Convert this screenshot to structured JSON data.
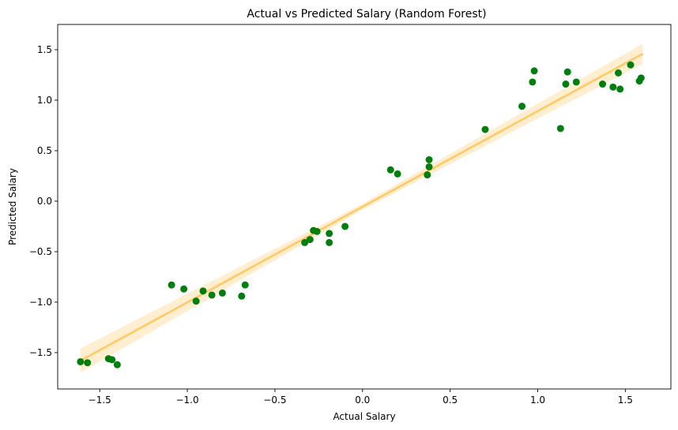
{
  "chart_data": {
    "type": "scatter",
    "title": "Actual vs Predicted Salary (Random Forest)",
    "xlabel": "Actual Salary",
    "ylabel": "Predicted Salary",
    "xlim": [
      -1.74,
      1.76
    ],
    "ylim": [
      -1.86,
      1.75
    ],
    "xticks": [
      -1.5,
      -1.0,
      -0.5,
      0.0,
      0.5,
      1.0,
      1.5
    ],
    "xtick_labels": [
      "−1.5",
      "−1.0",
      "−0.5",
      "0.0",
      "0.5",
      "1.0",
      "1.5"
    ],
    "yticks": [
      -1.5,
      -1.0,
      -0.5,
      0.0,
      0.5,
      1.0,
      1.5
    ],
    "yticks_labels": [
      "−1.5",
      "−1.0",
      "−0.5",
      "0.0",
      "0.5",
      "1.0",
      "1.5"
    ],
    "grid": false,
    "point_color": "#007f0e",
    "fit_line_color": "#ffc966",
    "fit_band_color": "#ffe0a8",
    "fit_line": {
      "x": [
        -1.61,
        1.6
      ],
      "y": [
        -1.58,
        1.46
      ]
    },
    "fit_band_halfwidth": [
      0.12,
      0.03,
      0.1
    ],
    "points": [
      {
        "x": -1.61,
        "y": -1.59
      },
      {
        "x": -1.57,
        "y": -1.6
      },
      {
        "x": -1.45,
        "y": -1.56
      },
      {
        "x": -1.43,
        "y": -1.57
      },
      {
        "x": -1.4,
        "y": -1.62
      },
      {
        "x": -1.09,
        "y": -0.83
      },
      {
        "x": -1.02,
        "y": -0.87
      },
      {
        "x": -0.95,
        "y": -0.99
      },
      {
        "x": -0.91,
        "y": -0.89
      },
      {
        "x": -0.86,
        "y": -0.93
      },
      {
        "x": -0.8,
        "y": -0.91
      },
      {
        "x": -0.69,
        "y": -0.94
      },
      {
        "x": -0.67,
        "y": -0.83
      },
      {
        "x": -0.33,
        "y": -0.41
      },
      {
        "x": -0.3,
        "y": -0.38
      },
      {
        "x": -0.28,
        "y": -0.29
      },
      {
        "x": -0.26,
        "y": -0.3
      },
      {
        "x": -0.19,
        "y": -0.32
      },
      {
        "x": -0.19,
        "y": -0.41
      },
      {
        "x": -0.1,
        "y": -0.25
      },
      {
        "x": 0.16,
        "y": 0.31
      },
      {
        "x": 0.2,
        "y": 0.27
      },
      {
        "x": 0.37,
        "y": 0.26
      },
      {
        "x": 0.38,
        "y": 0.41
      },
      {
        "x": 0.38,
        "y": 0.34
      },
      {
        "x": 0.7,
        "y": 0.71
      },
      {
        "x": 0.91,
        "y": 0.94
      },
      {
        "x": 0.97,
        "y": 1.18
      },
      {
        "x": 0.98,
        "y": 1.29
      },
      {
        "x": 1.13,
        "y": 0.72
      },
      {
        "x": 1.16,
        "y": 1.16
      },
      {
        "x": 1.17,
        "y": 1.28
      },
      {
        "x": 1.22,
        "y": 1.18
      },
      {
        "x": 1.37,
        "y": 1.16
      },
      {
        "x": 1.43,
        "y": 1.13
      },
      {
        "x": 1.46,
        "y": 1.27
      },
      {
        "x": 1.47,
        "y": 1.11
      },
      {
        "x": 1.53,
        "y": 1.35
      },
      {
        "x": 1.58,
        "y": 1.19
      },
      {
        "x": 1.59,
        "y": 1.22
      }
    ]
  }
}
